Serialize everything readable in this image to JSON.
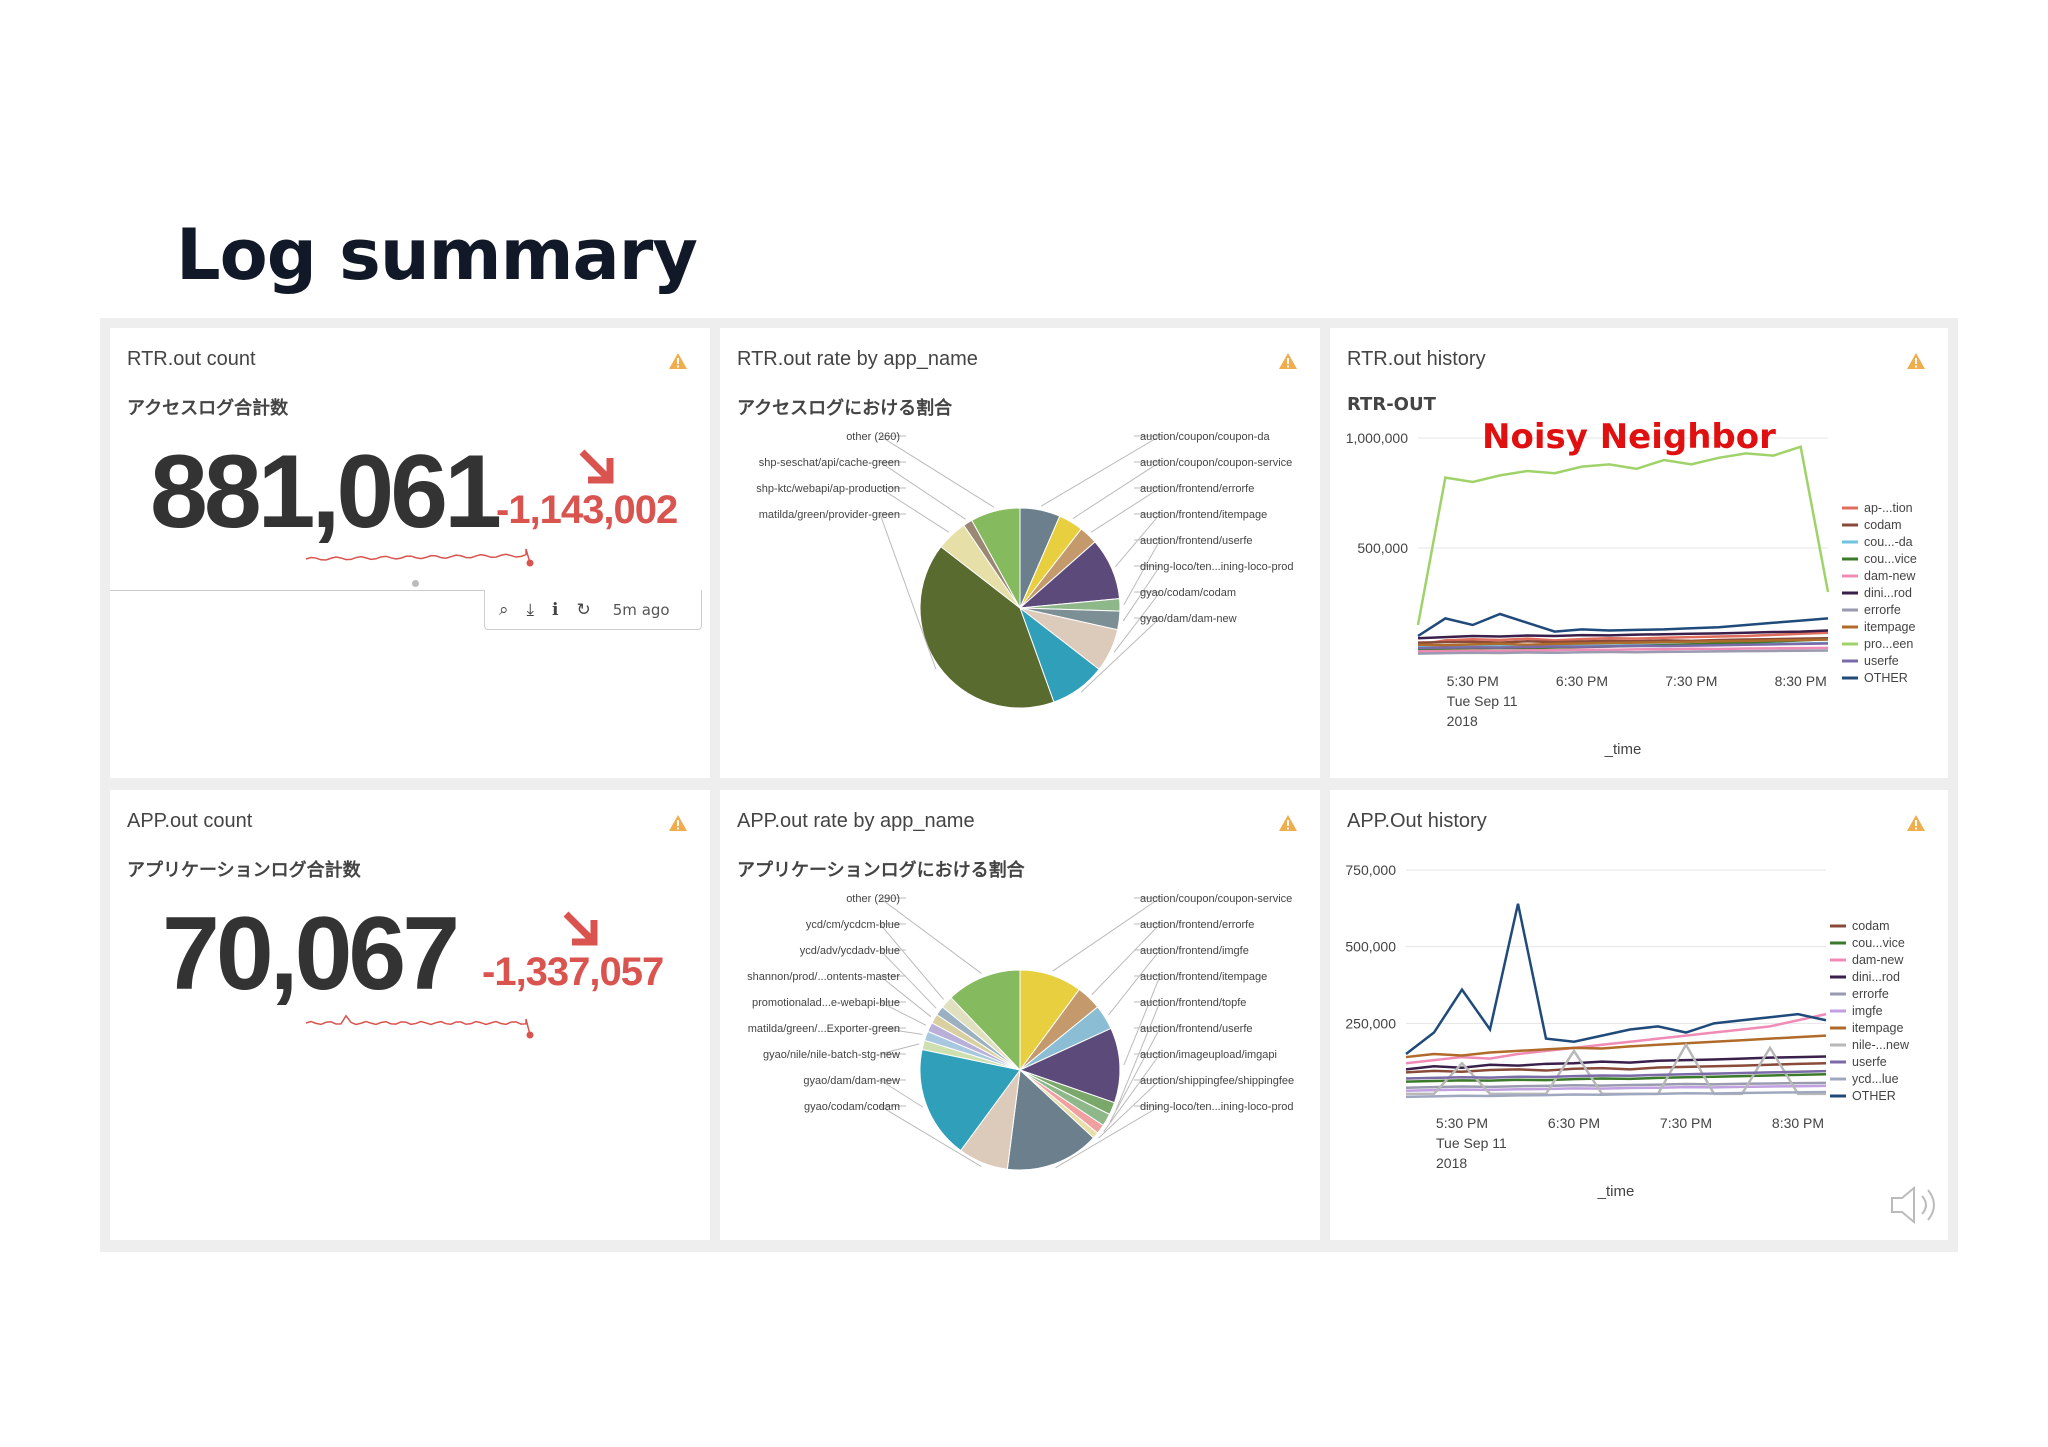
{
  "slide": {
    "title": "Log summary",
    "annotation": "Noisy Neighbor"
  },
  "colors": {
    "delta": "#d9534f",
    "warning": "#f0ad4e",
    "annotation": "#e01010"
  },
  "panels": {
    "rtr_count": {
      "title": "RTR.out count",
      "subtitle": "アクセスログ合計数",
      "value": "881,061",
      "delta": "-1,143,002",
      "toolbar": {
        "icons": [
          "search-icon",
          "download-icon",
          "info-icon",
          "refresh-icon"
        ],
        "age": "5m ago"
      }
    },
    "rtr_rate": {
      "title": "RTR.out rate by app_name",
      "subtitle": "アクセスログにおける割合",
      "chart_data": {
        "type": "pie",
        "labels": [
          "auction/coupon/coupon-da",
          "auction/coupon/coupon-service",
          "auction/frontend/errorfe",
          "auction/frontend/itempage",
          "auction/frontend/userfe",
          "dining-loco/ten...ining-loco-prod",
          "gyao/codam/codam",
          "gyao/dam/dam-new",
          "matilda/green/provider-green",
          "shp-ktc/webapi/ap-production",
          "shp-seschat/api/cache-green",
          "other (260)"
        ],
        "values": [
          6.5,
          4.0,
          3.0,
          10.0,
          2.0,
          3.0,
          7.0,
          9.0,
          41.0,
          5.0,
          1.5,
          8.0
        ],
        "colors": [
          "#6b7f8c",
          "#e8cf3f",
          "#c49a6c",
          "#5c4a7a",
          "#8fb88a",
          "#7c8f94",
          "#dccabb",
          "#2f9fba",
          "#5a6b2f",
          "#e7dfa8",
          "#9b8874",
          "#86ba5e"
        ]
      }
    },
    "rtr_history": {
      "title": "RTR.out history",
      "subtitle": "RTR-OUT",
      "chart_data": {
        "type": "line",
        "x": [
          "5:00 PM",
          "5:15 PM",
          "5:30 PM",
          "5:45 PM",
          "6:00 PM",
          "6:15 PM",
          "6:30 PM",
          "6:45 PM",
          "7:00 PM",
          "7:15 PM",
          "7:30 PM",
          "7:45 PM",
          "8:00 PM",
          "8:15 PM",
          "8:30 PM",
          "8:45 PM"
        ],
        "x_ticks": [
          "5:30 PM",
          "6:30 PM",
          "7:30 PM",
          "8:30 PM"
        ],
        "x_date": [
          "Tue Sep 11",
          "2018"
        ],
        "xlabel": "_time",
        "y_ticks": [
          "1,000,000",
          "500,000"
        ],
        "ylim": [
          0,
          1000000
        ],
        "series": [
          {
            "name": "ap-...tion",
            "color": "#e06c5b",
            "values": [
              60000,
              80000,
              85000,
              82000,
              88000,
              80000,
              86000,
              90000,
              88000,
              92000,
              95000,
              98000,
              100000,
              105000,
              110000,
              115000
            ]
          },
          {
            "name": "codam",
            "color": "#8a4a3a",
            "values": [
              70000,
              72000,
              74000,
              70000,
              76000,
              72000,
              75000,
              78000,
              76000,
              80000,
              78000,
              82000,
              84000,
              86000,
              88000,
              90000
            ]
          },
          {
            "name": "cou...-da",
            "color": "#6cc4e0",
            "values": [
              50000,
              52000,
              55000,
              53000,
              56000,
              54000,
              58000,
              57000,
              59000,
              60000,
              62000,
              61000,
              63000,
              64000,
              66000,
              68000
            ]
          },
          {
            "name": "cou...vice",
            "color": "#3b7a2a",
            "values": [
              40000,
              42000,
              44000,
              46000,
              45000,
              48000,
              50000,
              52000,
              55000,
              58000,
              62000,
              66000,
              70000,
              75000,
              80000,
              85000
            ]
          },
          {
            "name": "dam-new",
            "color": "#f08bb5",
            "values": [
              30000,
              32000,
              34000,
              33000,
              35000,
              36000,
              38000,
              37000,
              39000,
              40000,
              42000,
              41000,
              43000,
              44000,
              45000,
              46000
            ]
          },
          {
            "name": "dini...rod",
            "color": "#3a1f4a",
            "values": [
              90000,
              95000,
              100000,
              98000,
              102000,
              100000,
              104000,
              103000,
              106000,
              108000,
              110000,
              112000,
              115000,
              118000,
              120000,
              125000
            ]
          },
          {
            "name": "errorfe",
            "color": "#9a9ab0",
            "values": [
              20000,
              22000,
              24000,
              23000,
              25000,
              24000,
              26000,
              27000,
              26000,
              28000,
              29000,
              30000,
              31000,
              32000,
              33000,
              34000
            ]
          },
          {
            "name": "itempage",
            "color": "#b06a2a",
            "values": [
              60000,
              58000,
              62000,
              65000,
              60000,
              64000,
              66000,
              68000,
              70000,
              72000,
              74000,
              76000,
              78000,
              80000,
              82000,
              84000
            ]
          },
          {
            "name": "pro...een",
            "color": "#9fd36a",
            "values": [
              150000,
              820000,
              800000,
              830000,
              850000,
              840000,
              870000,
              880000,
              860000,
              900000,
              880000,
              910000,
              930000,
              920000,
              960000,
              300000
            ]
          },
          {
            "name": "userfe",
            "color": "#7a6aa8",
            "values": [
              45000,
              47000,
              49000,
              48000,
              50000,
              52000,
              51000,
              53000,
              55000,
              54000,
              56000,
              58000,
              60000,
              62000,
              64000,
              66000
            ]
          },
          {
            "name": "OTHER",
            "color": "#1f4a7a",
            "values": [
              100000,
              180000,
              150000,
              200000,
              160000,
              120000,
              130000,
              125000,
              128000,
              130000,
              135000,
              140000,
              150000,
              160000,
              170000,
              180000
            ]
          }
        ]
      }
    },
    "app_count": {
      "title": "APP.out count",
      "subtitle": "アプリケーションログ合計数",
      "value": "70,067",
      "delta": "-1,337,057"
    },
    "app_rate": {
      "title": "APP.out rate by app_name",
      "subtitle": "アプリケーションログにおける割合",
      "chart_data": {
        "type": "pie",
        "labels": [
          "auction/coupon/coupon-service",
          "auction/frontend/errorfe",
          "auction/frontend/imgfe",
          "auction/frontend/itempage",
          "auction/frontend/topfe",
          "auction/frontend/userfe",
          "auction/imageupload/imgapi",
          "auction/shippingfee/shippingfee",
          "dining-loco/ten...ining-loco-prod",
          "gyao/codam/codam",
          "gyao/dam/dam-new",
          "gyao/nile/nile-batch-stg-new",
          "matilda/green/...Exporter-green",
          "promotionalad...e-webapi-blue",
          "shannon/prod/...ontents-master",
          "ycd/adv/ycdadv-blue",
          "ycd/cm/ycdcm-blue",
          "other (290)"
        ],
        "values": [
          10.0,
          4.0,
          4.0,
          12.0,
          2.0,
          2.0,
          1.5,
          1.0,
          15.0,
          8.0,
          18.0,
          1.5,
          1.5,
          1.5,
          1.5,
          1.5,
          2.0,
          12.0
        ],
        "colors": [
          "#e8cf3f",
          "#c49a6c",
          "#8bbdd4",
          "#5c4a7a",
          "#7aa86a",
          "#8fb88a",
          "#f0a0a0",
          "#e7dfa8",
          "#6b7f8c",
          "#dccabb",
          "#2f9fba",
          "#cfe0b0",
          "#a8c8e0",
          "#b8b0d8",
          "#d8d0a0",
          "#9bb0c0",
          "#e0e0c0",
          "#86ba5e"
        ]
      }
    },
    "app_history": {
      "title": "APP.Out history",
      "chart_data": {
        "type": "line",
        "x": [
          "5:00 PM",
          "5:15 PM",
          "5:30 PM",
          "5:45 PM",
          "6:00 PM",
          "6:15 PM",
          "6:30 PM",
          "6:45 PM",
          "7:00 PM",
          "7:15 PM",
          "7:30 PM",
          "7:45 PM",
          "8:00 PM",
          "8:15 PM",
          "8:30 PM",
          "8:45 PM"
        ],
        "x_ticks": [
          "5:30 PM",
          "6:30 PM",
          "7:30 PM",
          "8:30 PM"
        ],
        "x_date": [
          "Tue Sep 11",
          "2018"
        ],
        "xlabel": "_time",
        "y_ticks": [
          "750,000",
          "500,000",
          "250,000"
        ],
        "ylim": [
          0,
          750000
        ],
        "series": [
          {
            "name": "codam",
            "color": "#8a4a3a",
            "values": [
              90000,
              95000,
              92000,
              98000,
              100000,
              96000,
              102000,
              104000,
              100000,
              106000,
              108000,
              110000,
              112000,
              115000,
              118000,
              120000
            ]
          },
          {
            "name": "cou...vice",
            "color": "#3b7a2a",
            "values": [
              60000,
              62000,
              64000,
              63000,
              66000,
              65000,
              68000,
              70000,
              69000,
              72000,
              74000,
              76000,
              78000,
              80000,
              82000,
              84000
            ]
          },
          {
            "name": "dam-new",
            "color": "#f08bb5",
            "values": [
              120000,
              130000,
              140000,
              135000,
              150000,
              160000,
              170000,
              180000,
              190000,
              200000,
              210000,
              220000,
              230000,
              240000,
              260000,
              280000
            ]
          },
          {
            "name": "dini...rod",
            "color": "#3a1f4a",
            "values": [
              100000,
              110000,
              105000,
              115000,
              112000,
              118000,
              120000,
              125000,
              122000,
              128000,
              130000,
              132000,
              135000,
              138000,
              140000,
              142000
            ]
          },
          {
            "name": "errorfe",
            "color": "#9a9ab0",
            "values": [
              40000,
              42000,
              44000,
              43000,
              45000,
              46000,
              48000,
              47000,
              49000,
              50000,
              52000,
              51000,
              53000,
              54000,
              55000,
              56000
            ]
          },
          {
            "name": "imgfe",
            "color": "#c0a0e0",
            "values": [
              30000,
              32000,
              34000,
              33000,
              35000,
              36000,
              38000,
              37000,
              39000,
              40000,
              42000,
              41000,
              43000,
              44000,
              45000,
              46000
            ]
          },
          {
            "name": "itempage",
            "color": "#b06a2a",
            "values": [
              140000,
              150000,
              145000,
              155000,
              160000,
              165000,
              170000,
              168000,
              175000,
              180000,
              185000,
              190000,
              195000,
              200000,
              205000,
              210000
            ]
          },
          {
            "name": "nile-...new",
            "color": "#b8b8b8",
            "values": [
              20000,
              20000,
              120000,
              20000,
              20000,
              20000,
              160000,
              20000,
              20000,
              20000,
              180000,
              20000,
              20000,
              170000,
              20000,
              20000
            ]
          },
          {
            "name": "userfe",
            "color": "#7a6aa8",
            "values": [
              70000,
              72000,
              74000,
              73000,
              76000,
              75000,
              78000,
              80000,
              79000,
              82000,
              84000,
              86000,
              88000,
              90000,
              92000,
              94000
            ]
          },
          {
            "name": "ycd...lue",
            "color": "#a0a8c0",
            "values": [
              10000,
              12000,
              14000,
              13000,
              15000,
              16000,
              18000,
              17000,
              19000,
              20000,
              22000,
              21000,
              23000,
              24000,
              25000,
              26000
            ]
          },
          {
            "name": "OTHER",
            "color": "#1f4a7a",
            "values": [
              150000,
              220000,
              360000,
              230000,
              640000,
              200000,
              190000,
              210000,
              230000,
              240000,
              220000,
              250000,
              260000,
              270000,
              280000,
              260000
            ]
          }
        ]
      }
    }
  }
}
